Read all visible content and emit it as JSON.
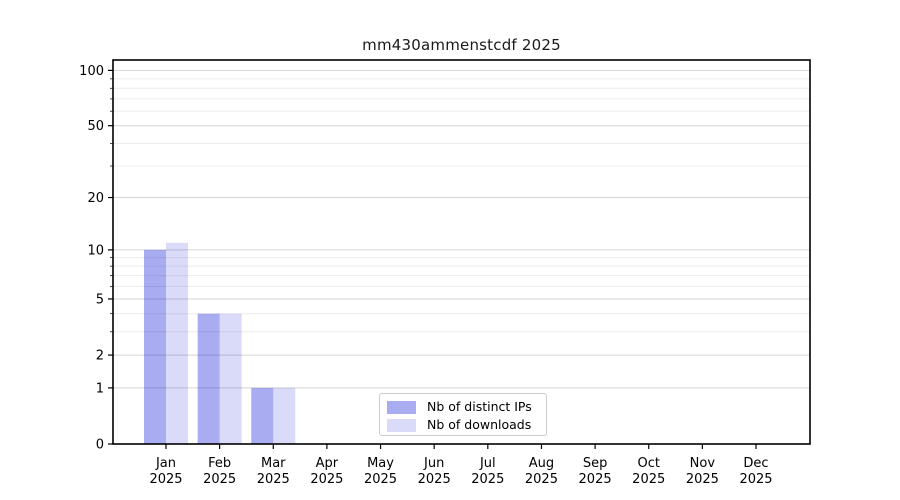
{
  "chart_data": {
    "type": "bar",
    "title": "mm430ammenstcdf 2025",
    "categories": [
      {
        "month": "Jan",
        "year": "2025"
      },
      {
        "month": "Feb",
        "year": "2025"
      },
      {
        "month": "Mar",
        "year": "2025"
      },
      {
        "month": "Apr",
        "year": "2025"
      },
      {
        "month": "May",
        "year": "2025"
      },
      {
        "month": "Jun",
        "year": "2025"
      },
      {
        "month": "Jul",
        "year": "2025"
      },
      {
        "month": "Aug",
        "year": "2025"
      },
      {
        "month": "Sep",
        "year": "2025"
      },
      {
        "month": "Oct",
        "year": "2025"
      },
      {
        "month": "Nov",
        "year": "2025"
      },
      {
        "month": "Dec",
        "year": "2025"
      }
    ],
    "series": [
      {
        "name": "Nb of distinct IPs",
        "color": "rgba(8,16,212,0.35)",
        "values": [
          10,
          4,
          1,
          0,
          0,
          0,
          0,
          0,
          0,
          0,
          0,
          0
        ]
      },
      {
        "name": "Nb of downloads",
        "color": "rgba(8,16,212,0.15)",
        "values": [
          11,
          4,
          1,
          0,
          0,
          0,
          0,
          0,
          0,
          0,
          0,
          0
        ]
      }
    ],
    "y_axis": {
      "scale": "log10(1+v)",
      "major_ticks": [
        0,
        1,
        2,
        5,
        10,
        20,
        50,
        100
      ],
      "minor_ticks": [
        3,
        4,
        6,
        7,
        8,
        9,
        30,
        40,
        60,
        70,
        80,
        90
      ],
      "min": 0,
      "max": 113
    },
    "xlabel": "",
    "ylabel": "",
    "grid": {
      "enabled": true,
      "major_color": "#d4d4d4",
      "minor_color": "#ececec"
    },
    "legend": {
      "position": "bottom-center",
      "entries": [
        "Nb of distinct IPs",
        "Nb of downloads"
      ]
    },
    "colors": {
      "spine": "#000000",
      "text": "#000000",
      "background": "#ffffff"
    }
  }
}
